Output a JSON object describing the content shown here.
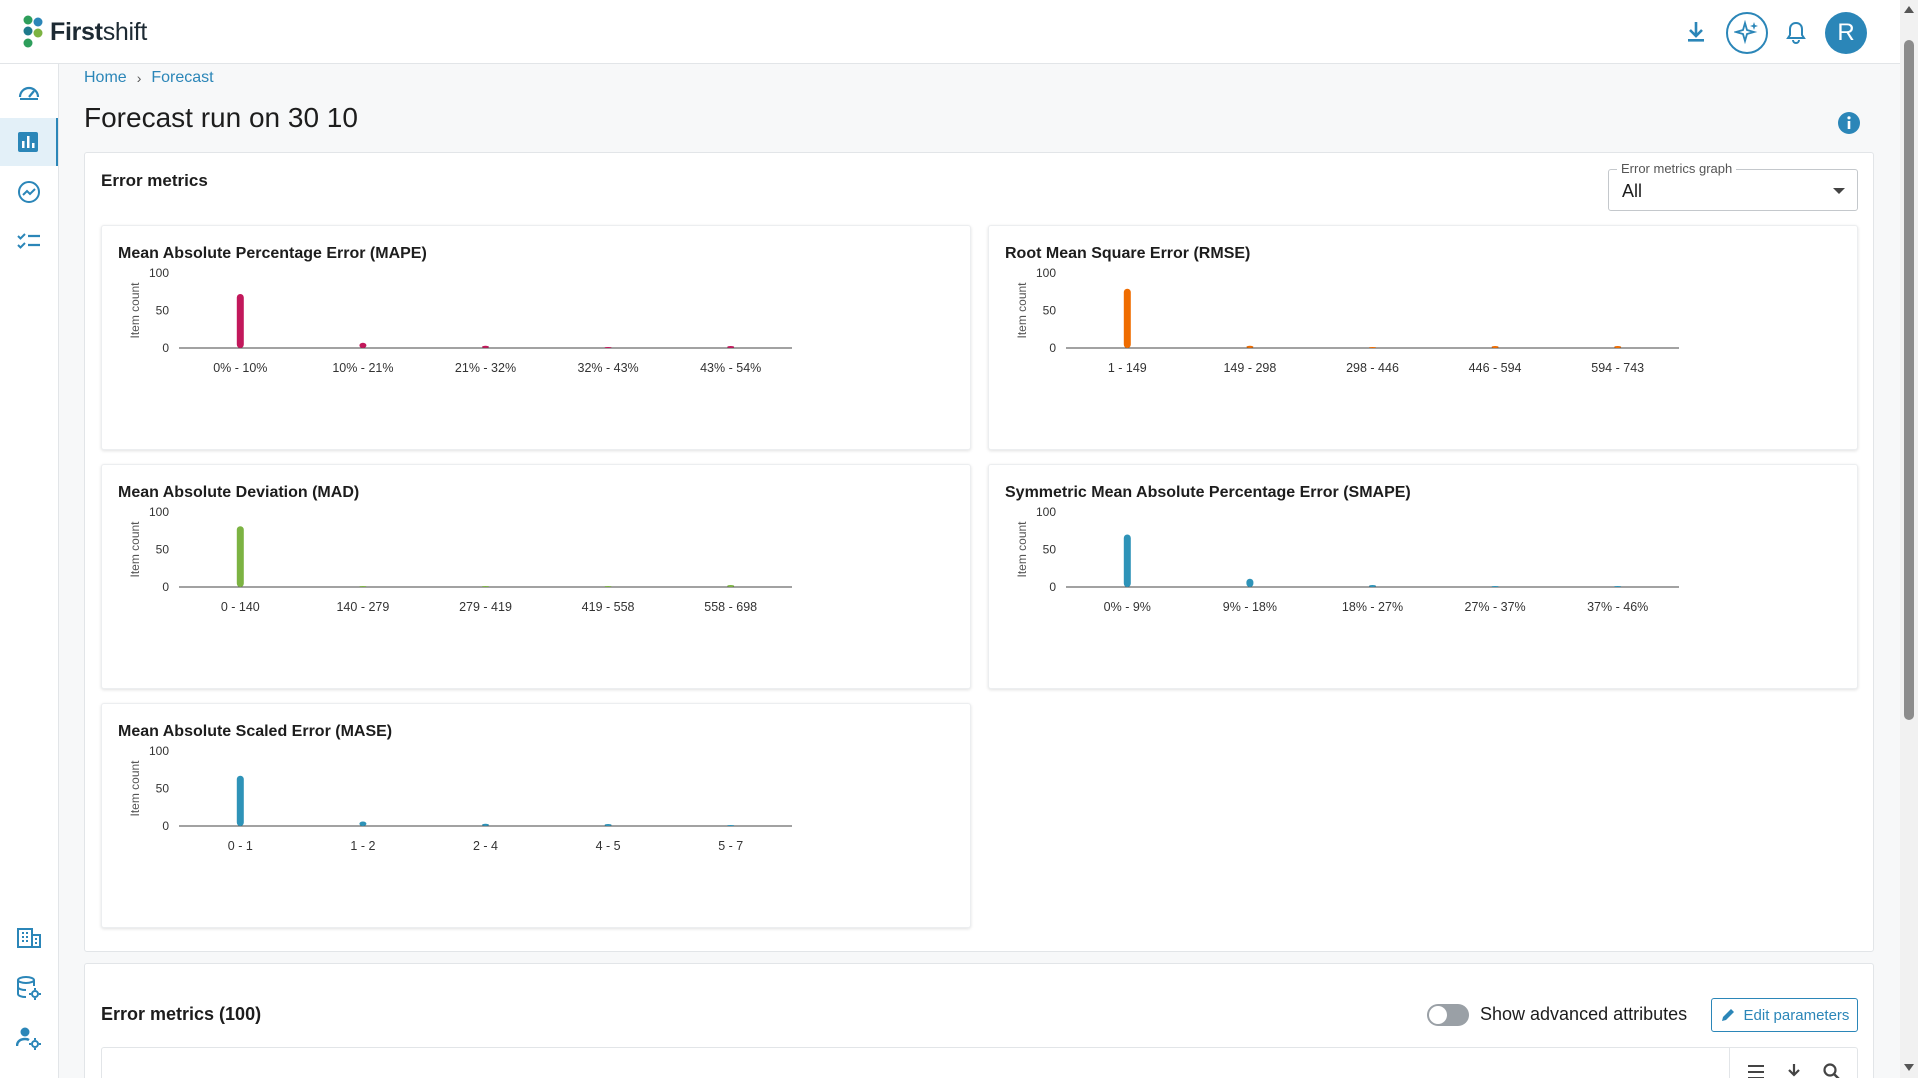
{
  "app": {
    "logo_bold": "First",
    "logo_light": "shift"
  },
  "header": {
    "icons": [
      "download-icon",
      "ai-sparkle-icon",
      "bell-icon"
    ],
    "avatar_initial": "R"
  },
  "sidebar": {
    "items": [
      {
        "name": "dashboard",
        "icon": "speedometer-icon",
        "active": false
      },
      {
        "name": "forecast",
        "icon": "bar-chart-icon",
        "active": true
      },
      {
        "name": "trends",
        "icon": "trend-icon",
        "active": false
      },
      {
        "name": "tasks",
        "icon": "checklist-icon",
        "active": false
      },
      {
        "name": "organization",
        "icon": "building-icon",
        "active": false
      },
      {
        "name": "data-settings",
        "icon": "database-gear-icon",
        "active": false
      },
      {
        "name": "user-settings",
        "icon": "user-gear-icon",
        "active": false
      }
    ]
  },
  "breadcrumb": {
    "home": "Home",
    "separator": "›",
    "current": "Forecast"
  },
  "page": {
    "title": "Forecast run on 30 10"
  },
  "error_panel": {
    "title": "Error metrics",
    "select": {
      "label": "Error metrics graph",
      "value": "All"
    }
  },
  "chart_data": [
    {
      "type": "bar",
      "title": "Mean Absolute Percentage Error (MAPE)",
      "ylabel": "Item count",
      "ylim": [
        0,
        100
      ],
      "yticks": [
        0,
        50,
        100
      ],
      "categories": [
        "0% - 10%",
        "10% - 21%",
        "21% - 32%",
        "32% - 43%",
        "43% - 54%"
      ],
      "values": [
        72,
        7,
        3,
        0,
        1
      ],
      "color": "#c2185b"
    },
    {
      "type": "bar",
      "title": "Root Mean Square Error (RMSE)",
      "ylabel": "Item count",
      "ylim": [
        0,
        100
      ],
      "yticks": [
        0,
        50,
        100
      ],
      "categories": [
        "1 - 149",
        "149 - 298",
        "298 - 446",
        "446 - 594",
        "594 - 743"
      ],
      "values": [
        79,
        3,
        0,
        1,
        1
      ],
      "color": "#ef6c00"
    },
    {
      "type": "bar",
      "title": "Mean Absolute Deviation (MAD)",
      "ylabel": "Item count",
      "ylim": [
        0,
        100
      ],
      "yticks": [
        0,
        50,
        100
      ],
      "categories": [
        "0 - 140",
        "140 - 279",
        "279 - 419",
        "419 - 558",
        "558 - 698"
      ],
      "values": [
        81,
        0,
        0,
        0,
        1
      ],
      "color": "#7cb342"
    },
    {
      "type": "bar",
      "title": "Symmetric Mean Absolute Percentage Error (SMAPE)",
      "ylabel": "Item count",
      "ylim": [
        0,
        100
      ],
      "yticks": [
        0,
        50,
        100
      ],
      "categories": [
        "0% - 9%",
        "9% - 18%",
        "18% - 27%",
        "27% - 37%",
        "37% - 46%"
      ],
      "values": [
        70,
        11,
        2,
        0,
        0
      ],
      "color": "#2e93b8"
    },
    {
      "type": "bar",
      "title": "Mean Absolute Scaled Error (MASE)",
      "ylabel": "Item count",
      "ylim": [
        0,
        100
      ],
      "yticks": [
        0,
        50,
        100
      ],
      "categories": [
        "0 - 1",
        "1 - 2",
        "2 - 4",
        "4 - 5",
        "5 - 7"
      ],
      "values": [
        67,
        6,
        3,
        2,
        0
      ],
      "color": "#2e93b8"
    }
  ],
  "metrics_table": {
    "title": "Error metrics (100)",
    "toggle_label": "Show advanced attributes",
    "toggle_on": false,
    "edit_button": "Edit parameters",
    "tool_icons": [
      "columns-icon",
      "download-icon",
      "search-icon"
    ]
  }
}
